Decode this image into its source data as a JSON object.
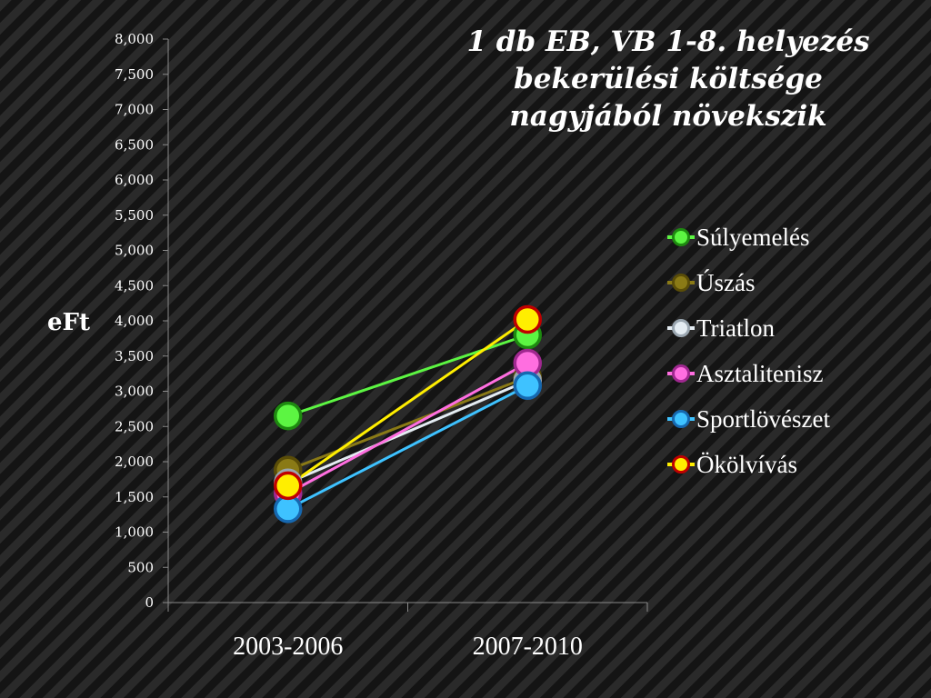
{
  "title_lines": [
    "1 db EB, VB 1-8. helyezés",
    "bekerülési költsége",
    "nagyjából növekszik"
  ],
  "chart_data": {
    "type": "line",
    "title": "1 db EB, VB 1-8. helyezés bekerülési költsége nagyjából növekszik",
    "ylabel": "eFt",
    "xlabel": "",
    "categories": [
      "2003-2006",
      "2007-2010"
    ],
    "ylim": [
      0,
      8000
    ],
    "yticks": [
      0,
      500,
      1000,
      1500,
      2000,
      2500,
      3000,
      3500,
      4000,
      4500,
      5000,
      5500,
      6000,
      6500,
      7000,
      7500,
      8000
    ],
    "ytick_labels": [
      "0",
      "500",
      "1,000",
      "1,500",
      "2,000",
      "2,500",
      "3,000",
      "3,500",
      "4,000",
      "4,500",
      "5,000",
      "5,500",
      "6,000",
      "6,500",
      "7,000",
      "7,500",
      "8,000"
    ],
    "legend_position": "right",
    "series": [
      {
        "name": "Súlyemelés",
        "values": [
          2650,
          3800
        ],
        "color": "#5cf542",
        "edge": "#1e8a10"
      },
      {
        "name": "Úszás",
        "values": [
          1880,
          3200
        ],
        "color": "#8a7a16",
        "edge": "#5a4d08"
      },
      {
        "name": "Triatlon",
        "values": [
          1700,
          3150
        ],
        "color": "#e4ecf2",
        "edge": "#9aa6b0"
      },
      {
        "name": "Asztalitenisz",
        "values": [
          1550,
          3400
        ],
        "color": "#ff6ee0",
        "edge": "#a02890"
      },
      {
        "name": "Sportlövészet",
        "values": [
          1330,
          3080
        ],
        "color": "#3ec2ff",
        "edge": "#1668b0"
      },
      {
        "name": "Ökölvívás",
        "values": [
          1660,
          4020
        ],
        "color": "#ffee00",
        "edge": "#c00000"
      }
    ]
  }
}
